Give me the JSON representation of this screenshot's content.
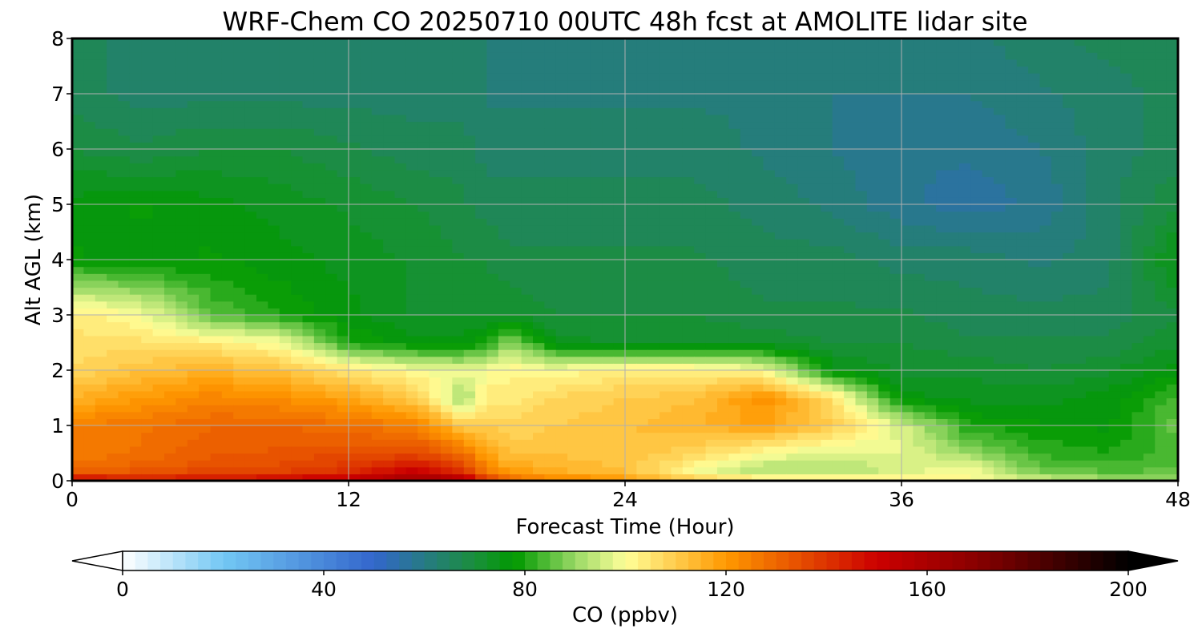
{
  "chart_data": {
    "type": "heatmap",
    "title": "WRF-Chem CO  20250710 00UTC 48h fcst at AMOLITE lidar site",
    "xlabel": "Forecast Time (Hour)",
    "ylabel": "Alt AGL (km)",
    "xlim": [
      0,
      48
    ],
    "ylim": [
      0,
      8
    ],
    "x_ticks": [
      "0",
      "12",
      "24",
      "36",
      "48"
    ],
    "y_ticks": [
      "0",
      "1",
      "2",
      "3",
      "4",
      "5",
      "6",
      "7",
      "8"
    ],
    "grid": true,
    "colorbar": {
      "label": "CO  (ppbv)",
      "range": [
        0,
        200
      ],
      "ticks": [
        "0",
        "40",
        "80",
        "120",
        "160",
        "200"
      ],
      "extend": "both",
      "color_stops": [
        {
          "value": 0,
          "color": "#ffffff"
        },
        {
          "value": 20,
          "color": "#73c8f4"
        },
        {
          "value": 50,
          "color": "#3366cc"
        },
        {
          "value": 70,
          "color": "#1a8f3c"
        },
        {
          "value": 78,
          "color": "#009900"
        },
        {
          "value": 90,
          "color": "#99d966"
        },
        {
          "value": 100,
          "color": "#ffff99"
        },
        {
          "value": 120,
          "color": "#ff9900"
        },
        {
          "value": 150,
          "color": "#cc0000"
        },
        {
          "value": 170,
          "color": "#880000"
        },
        {
          "value": 200,
          "color": "#000000"
        }
      ]
    },
    "field_samples": {
      "hours": [
        0,
        3,
        6,
        9,
        12,
        15,
        17,
        18,
        19,
        21,
        24,
        27,
        30,
        33,
        36,
        39,
        42,
        45,
        48
      ],
      "altitudes_km": [
        0,
        0.2,
        0.5,
        1,
        1.5,
        2,
        2.5,
        3,
        4,
        5,
        6,
        7,
        8
      ],
      "values_ppbv": [
        [
          150,
          130,
          125,
          125,
          115,
          108,
          106,
          104,
          78,
          76,
          70,
          66,
          66
        ],
        [
          145,
          132,
          128,
          127,
          120,
          112,
          106,
          100,
          76,
          78,
          68,
          64,
          64
        ],
        [
          148,
          135,
          132,
          130,
          124,
          115,
          104,
          85,
          78,
          76,
          70,
          64,
          64
        ],
        [
          150,
          136,
          133,
          130,
          122,
          112,
          100,
          80,
          76,
          74,
          70,
          64,
          64
        ],
        [
          155,
          140,
          135,
          128,
          118,
          105,
          80,
          76,
          74,
          72,
          68,
          64,
          64
        ],
        [
          165,
          150,
          135,
          125,
          110,
          100,
          76,
          72,
          72,
          70,
          66,
          64,
          64
        ],
        [
          160,
          140,
          128,
          110,
          90,
          98,
          76,
          72,
          70,
          68,
          66,
          64,
          64
        ],
        [
          140,
          125,
          118,
          110,
          104,
          100,
          80,
          72,
          70,
          66,
          64,
          62,
          62
        ],
        [
          130,
          118,
          112,
          108,
          104,
          102,
          90,
          72,
          68,
          66,
          64,
          62,
          62
        ],
        [
          125,
          115,
          112,
          110,
          108,
          100,
          74,
          70,
          68,
          66,
          64,
          62,
          62
        ],
        [
          120,
          112,
          112,
          112,
          110,
          104,
          72,
          70,
          68,
          66,
          64,
          62,
          62
        ],
        [
          110,
          100,
          108,
          115,
          112,
          104,
          72,
          70,
          68,
          66,
          64,
          62,
          62
        ],
        [
          106,
          92,
          100,
          118,
          122,
          100,
          72,
          68,
          66,
          64,
          62,
          62,
          62
        ],
        [
          104,
          92,
          96,
          110,
          106,
          76,
          70,
          68,
          66,
          62,
          60,
          60,
          62
        ],
        [
          102,
          96,
          98,
          96,
          76,
          72,
          70,
          68,
          64,
          58,
          58,
          60,
          62
        ],
        [
          100,
          100,
          90,
          80,
          74,
          72,
          68,
          66,
          64,
          56,
          58,
          60,
          62
        ],
        [
          96,
          86,
          82,
          78,
          74,
          70,
          68,
          66,
          62,
          58,
          60,
          62,
          64
        ],
        [
          92,
          84,
          80,
          77,
          76,
          72,
          68,
          66,
          64,
          64,
          64,
          64,
          66
        ],
        [
          92,
          85,
          84,
          86,
          84,
          76,
          72,
          70,
          76,
          70,
          66,
          66,
          66
        ]
      ]
    }
  }
}
